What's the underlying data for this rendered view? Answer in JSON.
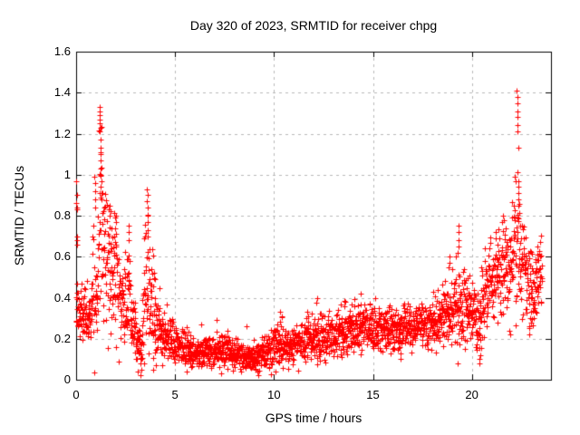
{
  "title": "Day 320 of 2023, SRMTID for receiver chpg",
  "axes": {
    "xlabel": "GPS time / hours",
    "ylabel": "SRMTID / TECUs"
  },
  "colors": {
    "marker": "#ff0000",
    "grid": "#b8b8b8",
    "border": "#000000",
    "background": "#ffffff",
    "text": "#000000"
  },
  "chart_data": {
    "type": "scatter",
    "marker": "plus",
    "title": "Day 320 of 2023, SRMTID for receiver chpg",
    "xlabel": "GPS time / hours",
    "ylabel": "SRMTID / TECUs",
    "xlim": [
      0,
      24
    ],
    "ylim": [
      0,
      1.6
    ],
    "xticks": [
      0,
      5,
      10,
      15,
      20
    ],
    "xtick_labels": [
      "0",
      "5",
      "10",
      "15",
      "20"
    ],
    "yticks": [
      0,
      0.2,
      0.4,
      0.6,
      0.8,
      1.0,
      1.2,
      1.4,
      1.6
    ],
    "ytick_labels": [
      "0",
      "0.2",
      "0.4",
      "0.6",
      "0.8",
      "1",
      "1.2",
      "1.4",
      "1.6"
    ],
    "grid": true,
    "legend": "none",
    "sampling": {
      "t_start": 0.0,
      "t_end": 23.55,
      "points_per_hour": 110,
      "seed": 320,
      "v_min": 0.02,
      "v_max": 1.42
    },
    "envelope_knots_t_mean_sigma": [
      [
        0.0,
        0.38,
        0.08
      ],
      [
        0.3,
        0.33,
        0.07
      ],
      [
        0.7,
        0.3,
        0.065
      ],
      [
        0.9,
        0.48,
        0.15
      ],
      [
        1.05,
        0.42,
        0.1
      ],
      [
        1.15,
        0.8,
        0.24
      ],
      [
        1.3,
        0.82,
        0.24
      ],
      [
        1.45,
        0.6,
        0.15
      ],
      [
        1.7,
        0.58,
        0.14
      ],
      [
        1.95,
        0.58,
        0.15
      ],
      [
        2.1,
        0.42,
        0.12
      ],
      [
        2.4,
        0.32,
        0.09
      ],
      [
        2.65,
        0.45,
        0.15
      ],
      [
        2.8,
        0.3,
        0.08
      ],
      [
        3.1,
        0.18,
        0.06
      ],
      [
        3.3,
        0.14,
        0.05
      ],
      [
        3.55,
        0.55,
        0.21
      ],
      [
        3.7,
        0.38,
        0.15
      ],
      [
        3.95,
        0.3,
        0.11
      ],
      [
        4.2,
        0.24,
        0.07
      ],
      [
        4.6,
        0.22,
        0.06
      ],
      [
        5.0,
        0.16,
        0.045
      ],
      [
        5.5,
        0.15,
        0.045
      ],
      [
        6.0,
        0.13,
        0.035
      ],
      [
        7.1,
        0.14,
        0.045
      ],
      [
        7.6,
        0.14,
        0.04
      ],
      [
        8.3,
        0.12,
        0.035
      ],
      [
        8.8,
        0.11,
        0.03
      ],
      [
        9.4,
        0.12,
        0.035
      ],
      [
        10.0,
        0.16,
        0.05
      ],
      [
        10.4,
        0.18,
        0.055
      ],
      [
        11.0,
        0.17,
        0.045
      ],
      [
        11.7,
        0.2,
        0.055
      ],
      [
        12.2,
        0.21,
        0.06
      ],
      [
        13.0,
        0.21,
        0.055
      ],
      [
        13.6,
        0.24,
        0.06
      ],
      [
        14.3,
        0.25,
        0.06
      ],
      [
        15.0,
        0.26,
        0.055
      ],
      [
        15.6,
        0.24,
        0.05
      ],
      [
        16.2,
        0.25,
        0.055
      ],
      [
        17.0,
        0.26,
        0.05
      ],
      [
        17.6,
        0.27,
        0.05
      ],
      [
        18.2,
        0.29,
        0.06
      ],
      [
        18.8,
        0.33,
        0.08
      ],
      [
        19.3,
        0.37,
        0.1
      ],
      [
        19.8,
        0.35,
        0.08
      ],
      [
        20.1,
        0.32,
        0.08
      ],
      [
        20.35,
        0.25,
        0.11
      ],
      [
        20.6,
        0.42,
        0.1
      ],
      [
        21.0,
        0.49,
        0.1
      ],
      [
        21.5,
        0.55,
        0.11
      ],
      [
        22.0,
        0.58,
        0.11
      ],
      [
        22.25,
        0.7,
        0.2
      ],
      [
        22.45,
        0.6,
        0.12
      ],
      [
        22.8,
        0.5,
        0.1
      ],
      [
        23.1,
        0.45,
        0.09
      ],
      [
        23.35,
        0.5,
        0.08
      ],
      [
        23.55,
        0.48,
        0.08
      ]
    ],
    "outlier_points": [
      [
        0.02,
        0.97
      ],
      [
        0.03,
        0.9
      ],
      [
        0.02,
        0.86
      ],
      [
        0.05,
        0.84
      ],
      [
        0.04,
        0.83
      ],
      [
        0.03,
        0.7
      ],
      [
        0.06,
        0.68
      ],
      [
        0.05,
        0.66
      ],
      [
        0.93,
        0.99
      ],
      [
        0.95,
        0.96
      ],
      [
        0.94,
        0.92
      ],
      [
        0.96,
        0.88
      ],
      [
        0.95,
        0.84
      ],
      [
        1.18,
        1.33
      ],
      [
        1.2,
        1.31
      ],
      [
        1.19,
        1.29
      ],
      [
        1.21,
        1.27
      ],
      [
        1.2,
        1.25
      ],
      [
        1.22,
        1.23
      ],
      [
        1.21,
        1.21
      ],
      [
        1.23,
        1.17
      ],
      [
        1.22,
        1.13
      ],
      [
        1.24,
        1.1
      ],
      [
        1.23,
        1.07
      ],
      [
        1.25,
        1.03
      ],
      [
        1.24,
        1.0
      ],
      [
        1.26,
        0.97
      ],
      [
        1.25,
        0.94
      ],
      [
        1.27,
        0.91
      ],
      [
        1.7,
        0.85
      ],
      [
        1.72,
        0.82
      ],
      [
        1.68,
        0.8
      ],
      [
        2.0,
        0.8
      ],
      [
        2.02,
        0.77
      ],
      [
        1.98,
        0.74
      ],
      [
        2.65,
        0.75
      ],
      [
        2.67,
        0.72
      ],
      [
        2.64,
        0.68
      ],
      [
        3.58,
        0.93
      ],
      [
        3.6,
        0.9
      ],
      [
        3.59,
        0.87
      ],
      [
        3.61,
        0.84
      ],
      [
        3.6,
        0.8
      ],
      [
        3.62,
        0.77
      ],
      [
        3.61,
        0.73
      ],
      [
        3.63,
        0.7
      ],
      [
        3.95,
        0.52
      ],
      [
        3.97,
        0.49
      ],
      [
        3.28,
        0.05
      ],
      [
        5.6,
        0.04
      ],
      [
        8.35,
        0.04
      ],
      [
        9.05,
        0.05
      ],
      [
        16.4,
        0.1
      ],
      [
        20.38,
        0.08
      ],
      [
        20.4,
        0.1
      ],
      [
        20.42,
        0.12
      ],
      [
        6.3,
        0.27
      ],
      [
        7.1,
        0.29
      ],
      [
        8.6,
        0.26
      ],
      [
        10.3,
        0.33
      ],
      [
        10.4,
        0.31
      ],
      [
        11.7,
        0.33
      ],
      [
        12.2,
        0.4
      ],
      [
        13.6,
        0.38
      ],
      [
        14.4,
        0.42
      ],
      [
        15.1,
        0.4
      ],
      [
        18.85,
        0.6
      ],
      [
        18.87,
        0.57
      ],
      [
        18.83,
        0.55
      ],
      [
        19.32,
        0.75
      ],
      [
        19.34,
        0.72
      ],
      [
        19.33,
        0.68
      ],
      [
        19.35,
        0.65
      ],
      [
        19.3,
        0.62
      ],
      [
        21.55,
        0.8
      ],
      [
        21.6,
        0.78
      ],
      [
        22.05,
        0.79
      ],
      [
        22.28,
        1.41
      ],
      [
        22.3,
        1.38
      ],
      [
        22.29,
        1.35
      ],
      [
        22.31,
        1.31
      ],
      [
        22.3,
        1.28
      ],
      [
        22.32,
        1.24
      ],
      [
        22.31,
        1.21
      ],
      [
        22.33,
        1.13
      ],
      [
        22.32,
        1.01
      ],
      [
        22.34,
        0.97
      ],
      [
        22.33,
        0.94
      ],
      [
        22.35,
        0.91
      ],
      [
        22.34,
        0.88
      ],
      [
        22.36,
        0.85
      ],
      [
        21.9,
        0.24
      ],
      [
        21.92,
        0.22
      ],
      [
        22.9,
        0.25
      ],
      [
        22.92,
        0.22
      ],
      [
        23.0,
        0.28
      ]
    ]
  }
}
